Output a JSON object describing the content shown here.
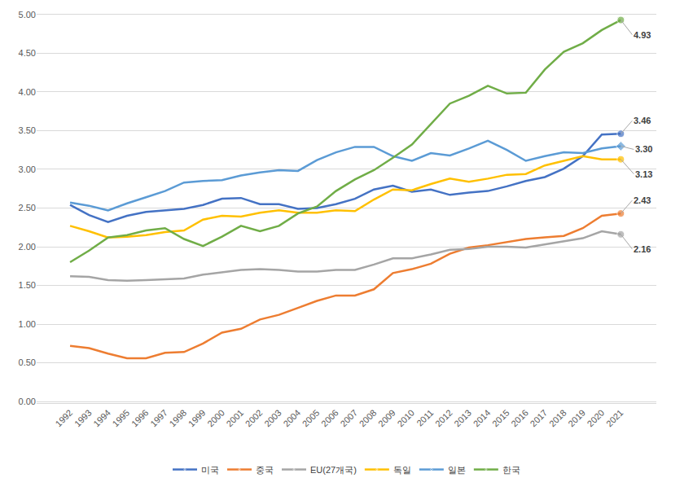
{
  "chart_data": {
    "type": "line",
    "categories": [
      "1992",
      "1993",
      "1994",
      "1995",
      "1996",
      "1997",
      "1998",
      "1999",
      "2000",
      "2001",
      "2002",
      "2003",
      "2004",
      "2005",
      "2006",
      "2007",
      "2008",
      "2009",
      "2010",
      "2011",
      "2012",
      "2013",
      "2014",
      "2015",
      "2016",
      "2017",
      "2018",
      "2019",
      "2020",
      "2021"
    ],
    "series": [
      {
        "name": "미국",
        "color": "#4472c4",
        "marker": "circle",
        "line_style": "solid",
        "values": [
          2.54,
          2.41,
          2.32,
          2.4,
          2.45,
          2.47,
          2.49,
          2.54,
          2.62,
          2.63,
          2.55,
          2.55,
          2.49,
          2.5,
          2.55,
          2.62,
          2.74,
          2.79,
          2.71,
          2.74,
          2.67,
          2.7,
          2.72,
          2.78,
          2.85,
          2.9,
          3.01,
          3.17,
          3.45,
          3.46
        ]
      },
      {
        "name": "중국",
        "color": "#ed7d31",
        "marker": "circle",
        "line_style": "solid",
        "values": [
          0.72,
          0.69,
          0.62,
          0.56,
          0.56,
          0.63,
          0.64,
          0.75,
          0.89,
          0.94,
          1.06,
          1.12,
          1.21,
          1.3,
          1.37,
          1.37,
          1.45,
          1.66,
          1.71,
          1.78,
          1.91,
          1.99,
          2.02,
          2.06,
          2.1,
          2.12,
          2.14,
          2.24,
          2.4,
          2.43
        ]
      },
      {
        "name": "EU(27개국)",
        "color": "#a5a5a5",
        "marker": "circle",
        "line_style": "solid",
        "values": [
          1.62,
          1.61,
          1.57,
          1.56,
          1.57,
          1.58,
          1.59,
          1.64,
          1.67,
          1.7,
          1.71,
          1.7,
          1.68,
          1.68,
          1.7,
          1.7,
          1.77,
          1.85,
          1.85,
          1.9,
          1.96,
          1.97,
          2.0,
          2.0,
          1.99,
          2.03,
          2.07,
          2.11,
          2.2,
          2.16
        ]
      },
      {
        "name": "독일",
        "color": "#ffc000",
        "marker": "circle",
        "line_style": "solid",
        "values": [
          2.27,
          2.2,
          2.12,
          2.13,
          2.15,
          2.19,
          2.21,
          2.35,
          2.4,
          2.39,
          2.44,
          2.47,
          2.44,
          2.44,
          2.47,
          2.46,
          2.61,
          2.74,
          2.73,
          2.81,
          2.88,
          2.84,
          2.88,
          2.93,
          2.94,
          3.05,
          3.11,
          3.17,
          3.13,
          3.13
        ]
      },
      {
        "name": "일본",
        "color": "#5b9bd5",
        "marker": "diamond",
        "line_style": "solid",
        "values": [
          2.57,
          2.53,
          2.47,
          2.56,
          2.64,
          2.72,
          2.83,
          2.85,
          2.86,
          2.92,
          2.96,
          2.99,
          2.98,
          3.12,
          3.22,
          3.29,
          3.29,
          3.17,
          3.11,
          3.21,
          3.18,
          3.27,
          3.37,
          3.25,
          3.11,
          3.17,
          3.22,
          3.21,
          3.27,
          3.3
        ]
      },
      {
        "name": "한국",
        "color": "#70ad47",
        "marker": "circle",
        "line_style": "solid",
        "values": [
          1.8,
          1.95,
          2.12,
          2.15,
          2.21,
          2.24,
          2.1,
          2.01,
          2.13,
          2.27,
          2.2,
          2.27,
          2.43,
          2.52,
          2.72,
          2.87,
          2.99,
          3.15,
          3.32,
          3.59,
          3.85,
          3.95,
          4.08,
          3.98,
          3.99,
          4.29,
          4.52,
          4.63,
          4.8,
          4.93
        ]
      }
    ],
    "annotations": [
      {
        "x": "2021",
        "y": 4.93,
        "text": "4.93"
      },
      {
        "x": "2021",
        "y": 3.46,
        "text": "3.46"
      },
      {
        "x": "2021",
        "y": 3.3,
        "text": "3.30"
      },
      {
        "x": "2021",
        "y": 3.13,
        "text": "3.13"
      },
      {
        "x": "2021",
        "y": 2.43,
        "text": "2.43"
      },
      {
        "x": "2021",
        "y": 2.16,
        "text": "2.16"
      }
    ],
    "ylim": [
      0,
      5
    ],
    "yticks": [
      {
        "value": 0,
        "label": "0.00"
      },
      {
        "value": 0.5,
        "label": "0.50"
      },
      {
        "value": 1,
        "label": "1.00"
      },
      {
        "value": 1.5,
        "label": "1.50"
      },
      {
        "value": 2,
        "label": "2.00"
      },
      {
        "value": 2.5,
        "label": "2.50"
      },
      {
        "value": 3,
        "label": "3.00"
      },
      {
        "value": 3.5,
        "label": "3.50"
      },
      {
        "value": 4,
        "label": "4.00"
      },
      {
        "value": 4.5,
        "label": "4.50"
      },
      {
        "value": 5,
        "label": "5.00"
      }
    ],
    "grid": true,
    "legend": "bottom"
  }
}
